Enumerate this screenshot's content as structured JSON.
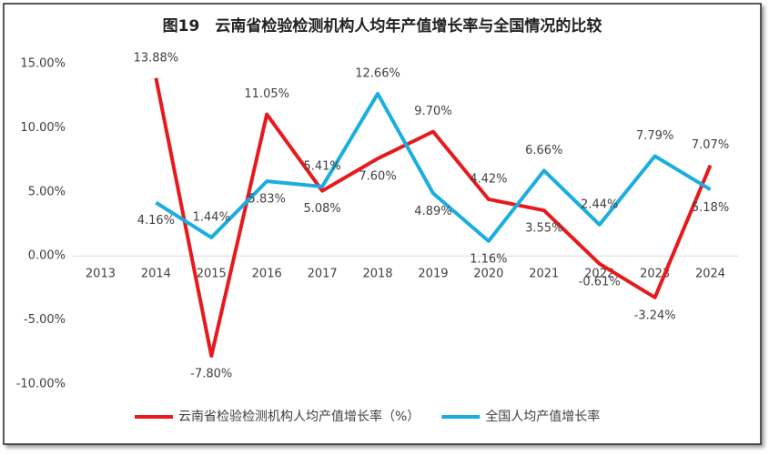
{
  "chart_data": {
    "type": "line",
    "title": "图19　云南省检验检测机构人均年产值增长率与全国情况的比较",
    "categories": [
      "2013",
      "2014",
      "2015",
      "2016",
      "2017",
      "2018",
      "2019",
      "2020",
      "2021",
      "2022",
      "2023",
      "2024"
    ],
    "series": [
      {
        "name": "云南省检验检测机构人均产值增长率（%）",
        "color": "#e8191c",
        "values": [
          null,
          13.88,
          -7.8,
          11.05,
          5.08,
          7.6,
          9.7,
          4.42,
          3.55,
          -0.61,
          -3.24,
          7.07
        ],
        "value_labels": [
          null,
          "13.88%",
          "-7.80%",
          "11.05%",
          "5.08%",
          "7.60%",
          "9.70%",
          "4.42%",
          "3.55%",
          "-0.61%",
          "-3.24%",
          "7.07%"
        ]
      },
      {
        "name": "全国人均产值增长率",
        "color": "#1aaee0",
        "values": [
          null,
          4.16,
          1.44,
          5.83,
          5.41,
          12.66,
          4.89,
          1.16,
          6.66,
          2.44,
          7.79,
          5.18
        ],
        "value_labels": [
          null,
          "4.16%",
          "1.44%",
          "5.83%",
          "5.41%",
          "12.66%",
          "4.89%",
          "1.16%",
          "6.66%",
          "2.44%",
          "7.79%",
          "5.18%"
        ]
      }
    ],
    "ylim": [
      -10,
      15
    ],
    "yticks": [
      {
        "value": -10,
        "label": "-10.00%"
      },
      {
        "value": -5,
        "label": "-5.00%"
      },
      {
        "value": 0,
        "label": "0.00%"
      },
      {
        "value": 5,
        "label": "5.00%"
      },
      {
        "value": 10,
        "label": "10.00%"
      },
      {
        "value": 15,
        "label": "15.00%"
      }
    ],
    "grid": false,
    "legend": "bottom"
  }
}
